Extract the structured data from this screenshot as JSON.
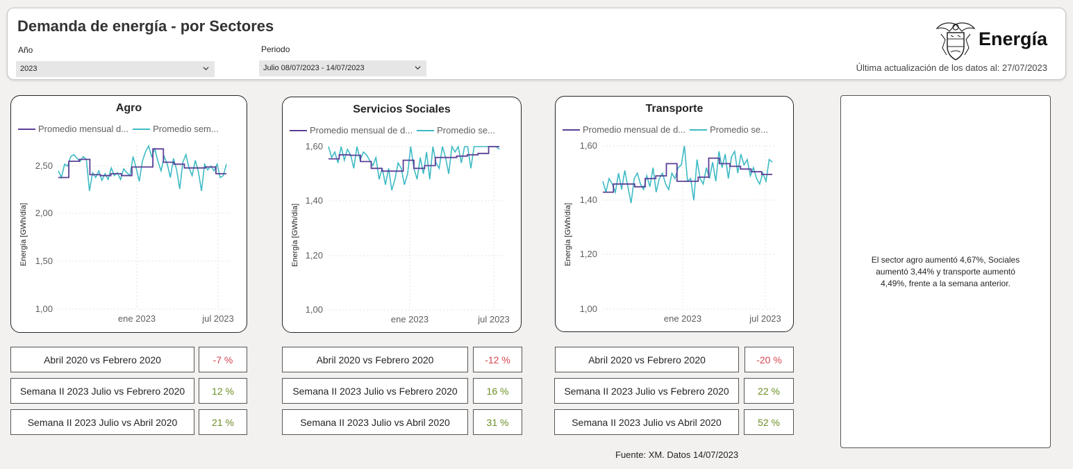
{
  "header": {
    "title": "Demanda de energía - por Sectores",
    "year_label": "Año",
    "year_value": "2023",
    "period_label": "Periodo",
    "period_value": "Julio 08/07/2023 - 14/07/2023",
    "brand": "Energía",
    "last_update": "Última actualización de los datos al: 27/07/2023"
  },
  "icons": {
    "dropdown": "chevron-down-icon",
    "logo": "coat-of-arms-logo"
  },
  "colors": {
    "monthly": "#5b3e96",
    "weekly": "#3dbac4",
    "negative": "#d64550",
    "positive": "#6b8e23"
  },
  "charts": [
    {
      "title": "Agro",
      "legend": [
        "Promedio mensual d...",
        "Promedio sem..."
      ],
      "ylabel": "Energía [GWh/día]",
      "yticks": [
        "2,50",
        "2,00",
        "1,50",
        "1,00"
      ],
      "xticks": [
        "ene 2023",
        "jul 2023"
      ],
      "comparisons": [
        {
          "label": "Abril 2020 vs Febrero 2020",
          "value": "-7 %",
          "sign": "neg"
        },
        {
          "label": "Semana II 2023 Julio vs Febrero 2020",
          "value": "12 %",
          "sign": "pos"
        },
        {
          "label": "Semana II 2023 Julio vs Abril 2020",
          "value": "21 %",
          "sign": "pos"
        }
      ]
    },
    {
      "title": "Servicios Sociales",
      "legend": [
        "Promedio mensual de d...",
        "Promedio se..."
      ],
      "ylabel": "Energía [GWh/día]",
      "yticks": [
        "1,60",
        "1,40",
        "1,20",
        "1,00"
      ],
      "xticks": [
        "ene 2023",
        "jul 2023"
      ],
      "comparisons": [
        {
          "label": "Abril 2020 vs Febrero 2020",
          "value": "-12 %",
          "sign": "neg"
        },
        {
          "label": "Semana II 2023 Julio vs Febrero 2020",
          "value": "16 %",
          "sign": "pos"
        },
        {
          "label": "Semana II 2023 Julio vs Abril 2020",
          "value": "31 %",
          "sign": "pos"
        }
      ]
    },
    {
      "title": "Transporte",
      "legend": [
        "Promedio mensual de d...",
        "Promedio se..."
      ],
      "ylabel": "Energía [GWh/día]",
      "yticks": [
        "1,60",
        "1,40",
        "1,20",
        "1,00"
      ],
      "xticks": [
        "ene 2023",
        "jul 2023"
      ],
      "comparisons": [
        {
          "label": "Abril 2020 vs Febrero 2020",
          "value": "-20 %",
          "sign": "neg"
        },
        {
          "label": "Semana II 2023 Julio vs Febrero 2020",
          "value": "22 %",
          "sign": "pos"
        },
        {
          "label": "Semana II 2023 Julio vs Abril 2020",
          "value": "52 %",
          "sign": "pos"
        }
      ]
    }
  ],
  "chart_data": [
    {
      "type": "line",
      "title": "Agro",
      "ylabel": "Energía [GWh/día]",
      "ylim": [
        1.0,
        2.75
      ],
      "xrange": [
        "2022-04",
        "2023-07"
      ],
      "series": [
        {
          "name": "Promedio mensual d...",
          "step": true,
          "months": [
            "2022-04",
            "2022-05",
            "2022-06",
            "2022-07",
            "2022-08",
            "2022-09",
            "2022-10",
            "2022-11",
            "2022-12",
            "2023-01",
            "2023-02",
            "2023-03",
            "2023-04",
            "2023-05",
            "2023-06",
            "2023-07"
          ],
          "values": [
            2.38,
            2.55,
            2.57,
            2.41,
            2.4,
            2.42,
            2.4,
            2.49,
            2.49,
            2.68,
            2.54,
            2.52,
            2.48,
            2.48,
            2.49,
            2.42
          ]
        },
        {
          "name": "Promedio sem...",
          "step": false,
          "values": [
            2.45,
            2.38,
            2.52,
            2.5,
            2.6,
            2.62,
            2.58,
            2.55,
            2.6,
            2.57,
            2.24,
            2.43,
            2.38,
            2.45,
            2.35,
            2.42,
            2.36,
            2.48,
            2.4,
            2.43,
            2.36,
            2.47,
            2.43,
            2.4,
            2.6,
            2.48,
            2.34,
            2.55,
            2.65,
            2.72,
            2.6,
            2.68,
            2.55,
            2.45,
            2.6,
            2.52,
            2.38,
            2.58,
            2.46,
            2.26,
            2.54,
            2.62,
            2.48,
            2.4,
            2.56,
            2.44,
            2.24,
            2.52,
            2.46,
            2.5,
            2.45,
            2.52,
            2.38,
            2.4,
            2.52
          ]
        }
      ]
    },
    {
      "type": "line",
      "title": "Servicios Sociales",
      "ylabel": "Energía [GWh/día]",
      "ylim": [
        1.0,
        1.6
      ],
      "xrange": [
        "2022-04",
        "2023-07"
      ],
      "series": [
        {
          "name": "Promedio mensual de d...",
          "step": true,
          "months": [
            "2022-04",
            "2022-05",
            "2022-06",
            "2022-07",
            "2022-08",
            "2022-09",
            "2022-10",
            "2022-11",
            "2022-12",
            "2023-01",
            "2023-02",
            "2023-03",
            "2023-04",
            "2023-05",
            "2023-06",
            "2023-07"
          ],
          "values": [
            1.555,
            1.57,
            1.568,
            1.545,
            1.52,
            1.51,
            1.51,
            1.55,
            1.52,
            1.53,
            1.56,
            1.56,
            1.565,
            1.57,
            1.575,
            1.6
          ]
        },
        {
          "name": "Promedio se...",
          "step": false,
          "values": [
            1.6,
            1.56,
            1.58,
            1.54,
            1.6,
            1.55,
            1.59,
            1.57,
            1.52,
            1.6,
            1.55,
            1.58,
            1.57,
            1.55,
            1.53,
            1.56,
            1.48,
            1.52,
            1.46,
            1.52,
            1.44,
            1.48,
            1.54,
            1.52,
            1.46,
            1.5,
            1.6,
            1.52,
            1.48,
            1.56,
            1.5,
            1.58,
            1.48,
            1.6,
            1.54,
            1.52,
            1.6,
            1.56,
            1.5,
            1.6,
            1.58,
            1.6,
            1.54,
            1.6,
            1.6,
            1.52,
            1.6,
            1.6,
            1.6,
            1.6,
            1.6,
            1.6,
            1.6,
            1.6,
            1.59
          ]
        }
      ]
    },
    {
      "type": "line",
      "title": "Transporte",
      "ylabel": "Energía [GWh/día]",
      "ylim": [
        1.0,
        1.6
      ],
      "xrange": [
        "2022-04",
        "2023-07"
      ],
      "series": [
        {
          "name": "Promedio mensual de d...",
          "step": true,
          "months": [
            "2022-04",
            "2022-05",
            "2022-06",
            "2022-07",
            "2022-08",
            "2022-09",
            "2022-10",
            "2022-11",
            "2022-12",
            "2023-01",
            "2023-02",
            "2023-03",
            "2023-04",
            "2023-05",
            "2023-06",
            "2023-07"
          ],
          "values": [
            1.43,
            1.46,
            1.46,
            1.45,
            1.48,
            1.49,
            1.535,
            1.47,
            1.47,
            1.485,
            1.555,
            1.535,
            1.525,
            1.515,
            1.505,
            1.495
          ]
        },
        {
          "name": "Promedio se...",
          "step": false,
          "values": [
            1.47,
            1.43,
            1.48,
            1.46,
            1.43,
            1.5,
            1.44,
            1.51,
            1.45,
            1.39,
            1.48,
            1.5,
            1.46,
            1.44,
            1.49,
            1.45,
            1.52,
            1.43,
            1.48,
            1.5,
            1.46,
            1.44,
            1.5,
            1.48,
            1.52,
            1.53,
            1.6,
            1.47,
            1.48,
            1.4,
            1.55,
            1.48,
            1.46,
            1.52,
            1.48,
            1.54,
            1.47,
            1.58,
            1.52,
            1.57,
            1.48,
            1.56,
            1.58,
            1.5,
            1.57,
            1.53,
            1.55,
            1.49,
            1.52,
            1.48,
            1.46,
            1.5,
            1.47,
            1.55,
            1.54
          ]
        }
      ]
    }
  ],
  "summary": "El sector agro aumentó  4,67%, Sociales aumentó  3,44% y transporte aumentó  4,49%, frente a la semana anterior.",
  "source": "Fuente: XM. Datos 14/07/2023"
}
